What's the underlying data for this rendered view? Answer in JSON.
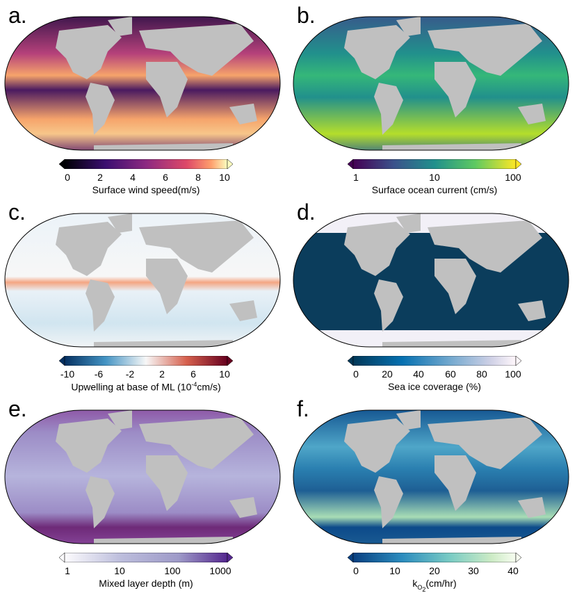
{
  "panels": [
    {
      "label": "a.",
      "title": "Surface wind speed(m/s)",
      "ticks": [
        "0",
        "2",
        "4",
        "6",
        "8",
        "10"
      ],
      "colors": {
        "ocean": "#b5417a",
        "band": "#f6a46b",
        "bg": "#2a0f45"
      }
    },
    {
      "label": "b.",
      "title": "Surface ocean current (cm/s)",
      "ticks": [
        "1",
        "10",
        "100"
      ],
      "colors": {
        "ocean": "#21908c",
        "band": "#b5de2b",
        "bg": "#3b528b"
      }
    },
    {
      "label": "c.",
      "title_pre": "Upwelling at base of ML (10",
      "title_sup": "-4",
      "title_post": "cm/s)",
      "ticks": [
        "-10",
        "-6",
        "-2",
        "2",
        "6",
        "10"
      ],
      "colors": {
        "ocean": "#eaf2f8",
        "band": "#f4a582",
        "bg": "#d6e6f2"
      }
    },
    {
      "label": "d.",
      "title": "Sea ice coverage (%)",
      "ticks": [
        "0",
        "20",
        "40",
        "60",
        "80",
        "100"
      ],
      "colors": {
        "ocean": "#0b3d5c",
        "band": "#f2f0f7",
        "bg": "#0b3d5c"
      }
    },
    {
      "label": "e.",
      "title": "Mixed layer depth (m)",
      "ticks": [
        "1",
        "10",
        "100",
        "1000"
      ],
      "colors": {
        "ocean": "#b6b4dc",
        "band": "#6e2a78",
        "bg": "#9c8cc6"
      }
    },
    {
      "label": "f.",
      "title_pre": "k",
      "title_sub": "O",
      "title_sub2": "2",
      "title_post": "(cm/hr)",
      "ticks": [
        "0",
        "10",
        "20",
        "30",
        "40"
      ],
      "colors": {
        "ocean": "#2a7fb0",
        "band": "#a8ddb5",
        "bg": "#1e5f94"
      }
    }
  ],
  "land_color": "#c0c0c0"
}
